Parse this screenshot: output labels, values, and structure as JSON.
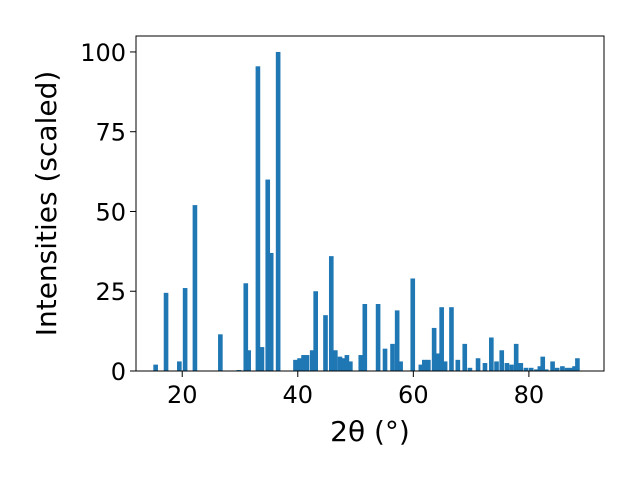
{
  "chart_data": {
    "type": "bar",
    "title": "",
    "xlabel": "2θ (°)",
    "ylabel": "Intensities (scaled)",
    "xlim": [
      12,
      93
    ],
    "ylim": [
      0,
      105
    ],
    "xticks": [
      20,
      40,
      60,
      80
    ],
    "yticks": [
      0,
      25,
      50,
      75,
      100
    ],
    "grid": false,
    "bar_color": "#1f77b4",
    "bar_width": 0.8,
    "x": [
      15.4,
      17.2,
      19.5,
      20.5,
      22.2,
      26.6,
      29.8,
      31.0,
      31.5,
      33.1,
      33.8,
      34.8,
      35.4,
      36.6,
      39.6,
      40.3,
      41.0,
      41.6,
      42.5,
      43.1,
      44.8,
      45.8,
      46.5,
      47.3,
      47.9,
      48.5,
      49.1,
      50.9,
      51.6,
      53.9,
      55.1,
      56.4,
      57.2,
      57.8,
      59.9,
      61.3,
      61.9,
      62.6,
      63.6,
      64.3,
      64.9,
      65.5,
      66.6,
      67.7,
      68.9,
      69.8,
      71.2,
      72.4,
      73.5,
      74.4,
      75.3,
      76.2,
      77.0,
      77.8,
      78.6,
      79.5,
      80.4,
      81.3,
      81.9,
      82.4,
      83.0,
      84.1,
      84.9,
      85.8,
      86.6,
      87.3,
      87.9,
      88.4
    ],
    "values": [
      2,
      24.5,
      3,
      26,
      52,
      11.5,
      0.3,
      27.5,
      6.5,
      95.5,
      7.5,
      60,
      37,
      100,
      3.5,
      4,
      5,
      5,
      6.5,
      25,
      17.5,
      36,
      6.5,
      4.5,
      4,
      5,
      3,
      5,
      21,
      21,
      7,
      8.5,
      19,
      3,
      29,
      2,
      3.5,
      3.5,
      13.5,
      5.5,
      20,
      3,
      20,
      3.5,
      8.5,
      1,
      4,
      2.5,
      10.5,
      3,
      6.5,
      2.5,
      2,
      8.5,
      2.5,
      1,
      1,
      0.5,
      1.5,
      4.5,
      0.5,
      3,
      1,
      1.5,
      1,
      1,
      1.5,
      4
    ]
  }
}
